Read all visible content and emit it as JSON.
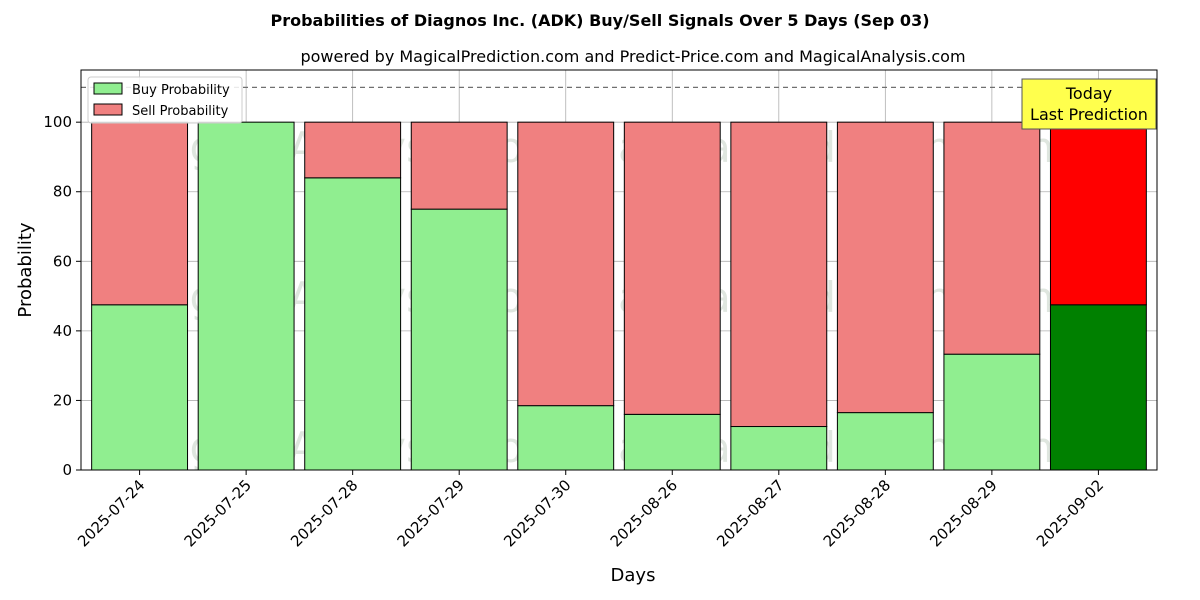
{
  "chart_data": {
    "type": "bar",
    "stacked": true,
    "title": "Probabilities of Diagnos Inc. (ADK) Buy/Sell Signals Over 5 Days (Sep 03)",
    "subtitle": "powered by MagicalPrediction.com and Predict-Price.com and MagicalAnalysis.com",
    "xlabel": "Days",
    "ylabel": "Probability",
    "ylim": [
      0,
      115
    ],
    "yticks": [
      0,
      20,
      40,
      60,
      80,
      100
    ],
    "grid": true,
    "reference_line": 110,
    "categories": [
      "2025-07-24",
      "2025-07-25",
      "2025-07-28",
      "2025-07-29",
      "2025-07-30",
      "2025-08-26",
      "2025-08-27",
      "2025-08-28",
      "2025-08-29",
      "2025-09-02"
    ],
    "series": [
      {
        "name": "Buy Probability",
        "color": "#90ee90",
        "highlight_color": "#008000",
        "values": [
          47.5,
          100,
          84,
          75,
          18.5,
          16,
          12.5,
          16.5,
          33.3,
          47.5
        ]
      },
      {
        "name": "Sell Probability",
        "color": "#f08080",
        "highlight_color": "#ff0000",
        "values": [
          52.5,
          0,
          16,
          25,
          81.5,
          84,
          87.5,
          83.5,
          66.7,
          52.5
        ]
      }
    ],
    "highlight_index": 9,
    "legend_position": "top-left",
    "annotation": {
      "line1": "Today",
      "line2": "Last Prediction",
      "bg_color": "#ffff4d"
    },
    "watermarks": [
      "MagicalAnalysis.com",
      "MagicalPrediction.com"
    ]
  }
}
